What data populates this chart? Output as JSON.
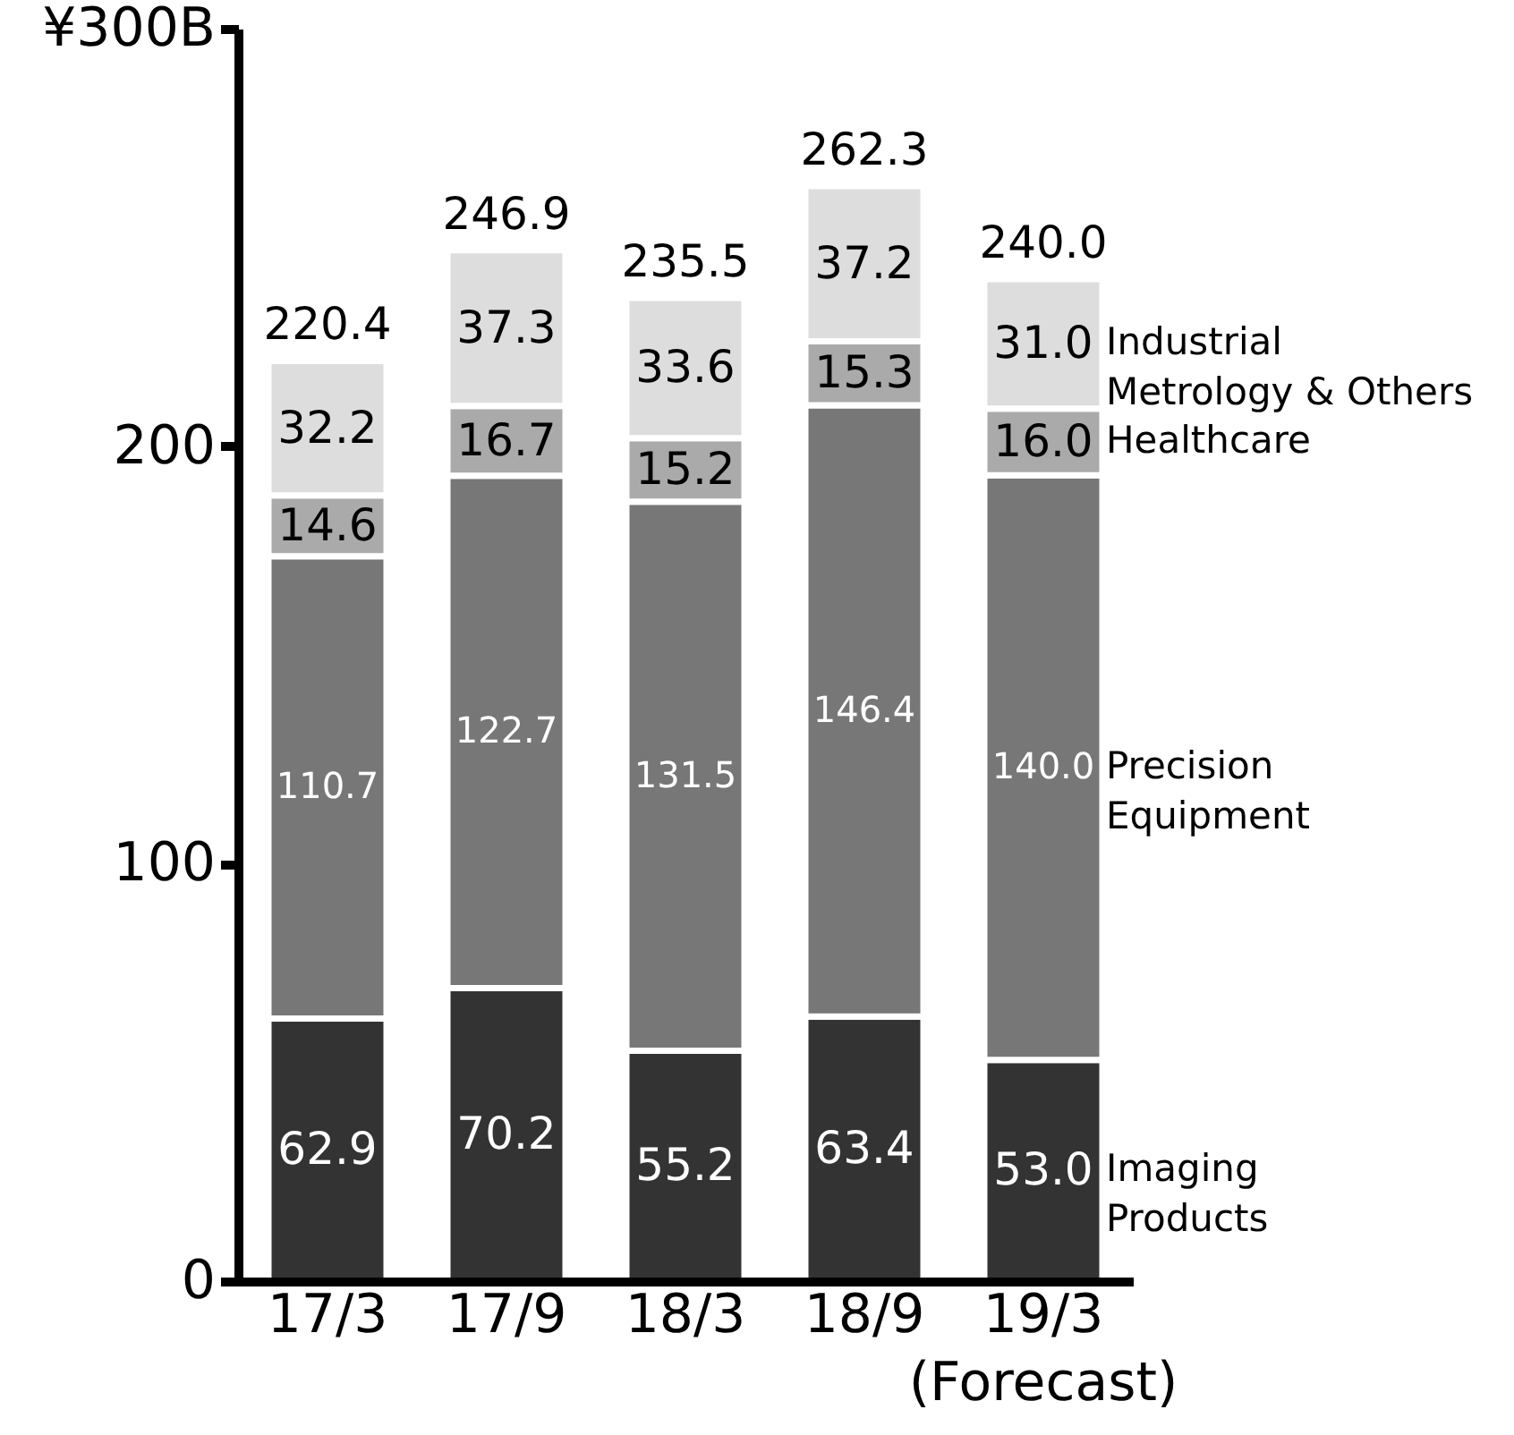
{
  "chart_data": {
    "type": "bar",
    "stacked": true,
    "categories": [
      "17/3",
      "17/9",
      "18/3",
      "18/9",
      "19/3 (Forecast)"
    ],
    "series": [
      {
        "name": "Imaging Products",
        "color": "#333333",
        "values": [
          62.9,
          70.2,
          55.2,
          63.4,
          53.0
        ],
        "value_labels": [
          "62.9",
          "70.2",
          "55.2",
          "63.4",
          "53.0"
        ]
      },
      {
        "name": "Precision Equipment",
        "color": "#777777",
        "values": [
          110.7,
          122.7,
          131.5,
          146.4,
          140.0
        ],
        "value_labels": [
          "110.7",
          "122.7",
          "131.5",
          "146.4",
          "140.0"
        ]
      },
      {
        "name": "Healthcare",
        "color": "#aaaaaa",
        "values": [
          14.6,
          16.7,
          15.2,
          15.3,
          16.0
        ],
        "value_labels": [
          "14.6",
          "16.7",
          "15.2",
          "15.3",
          "16.0"
        ]
      },
      {
        "name": "Industrial Metrology & Others",
        "color": "#dddddd",
        "values": [
          32.2,
          37.3,
          33.6,
          37.2,
          31.0
        ],
        "value_labels": [
          "32.2",
          "37.3",
          "33.6",
          "37.2",
          "31.0"
        ]
      }
    ],
    "totals": [
      "220.4",
      "246.9",
      "235.5",
      "262.3",
      "240.0"
    ],
    "ylim": [
      0,
      300
    ],
    "yticks": [
      0,
      100,
      200,
      {
        "value": 300,
        "label": "¥300B"
      }
    ]
  }
}
